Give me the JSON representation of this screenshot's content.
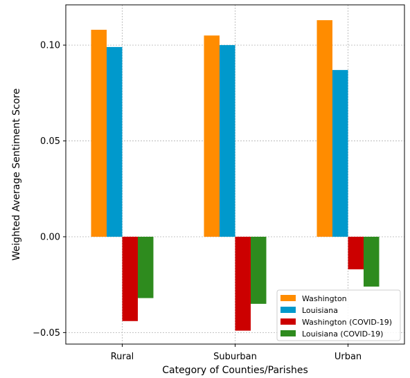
{
  "chart_data": {
    "type": "bar",
    "title": "",
    "xlabel": "Category of Counties/Parishes",
    "ylabel": "Weighted Average Sentiment Score",
    "categories": [
      "Rural",
      "Suburban",
      "Urban"
    ],
    "series": [
      {
        "name": "Washington",
        "color": "#ff8c00",
        "values": [
          0.108,
          0.105,
          0.113
        ]
      },
      {
        "name": "Louisiana",
        "color": "#0099cc",
        "values": [
          0.099,
          0.1,
          0.087
        ]
      },
      {
        "name": "Washington (COVID-19)",
        "color": "#cc0000",
        "values": [
          -0.044,
          -0.049,
          -0.017
        ]
      },
      {
        "name": "Louisiana (COVID-19)",
        "color": "#2e8b1e",
        "values": [
          -0.032,
          -0.035,
          -0.026
        ]
      }
    ],
    "ylim": [
      -0.056,
      0.121
    ],
    "yticks": [
      "0.10",
      "0.05",
      "0.00",
      "−0.05"
    ],
    "ytick_values": [
      0.1,
      0.05,
      0.0,
      -0.05
    ],
    "grid": true,
    "legend_position": "lower-right"
  }
}
